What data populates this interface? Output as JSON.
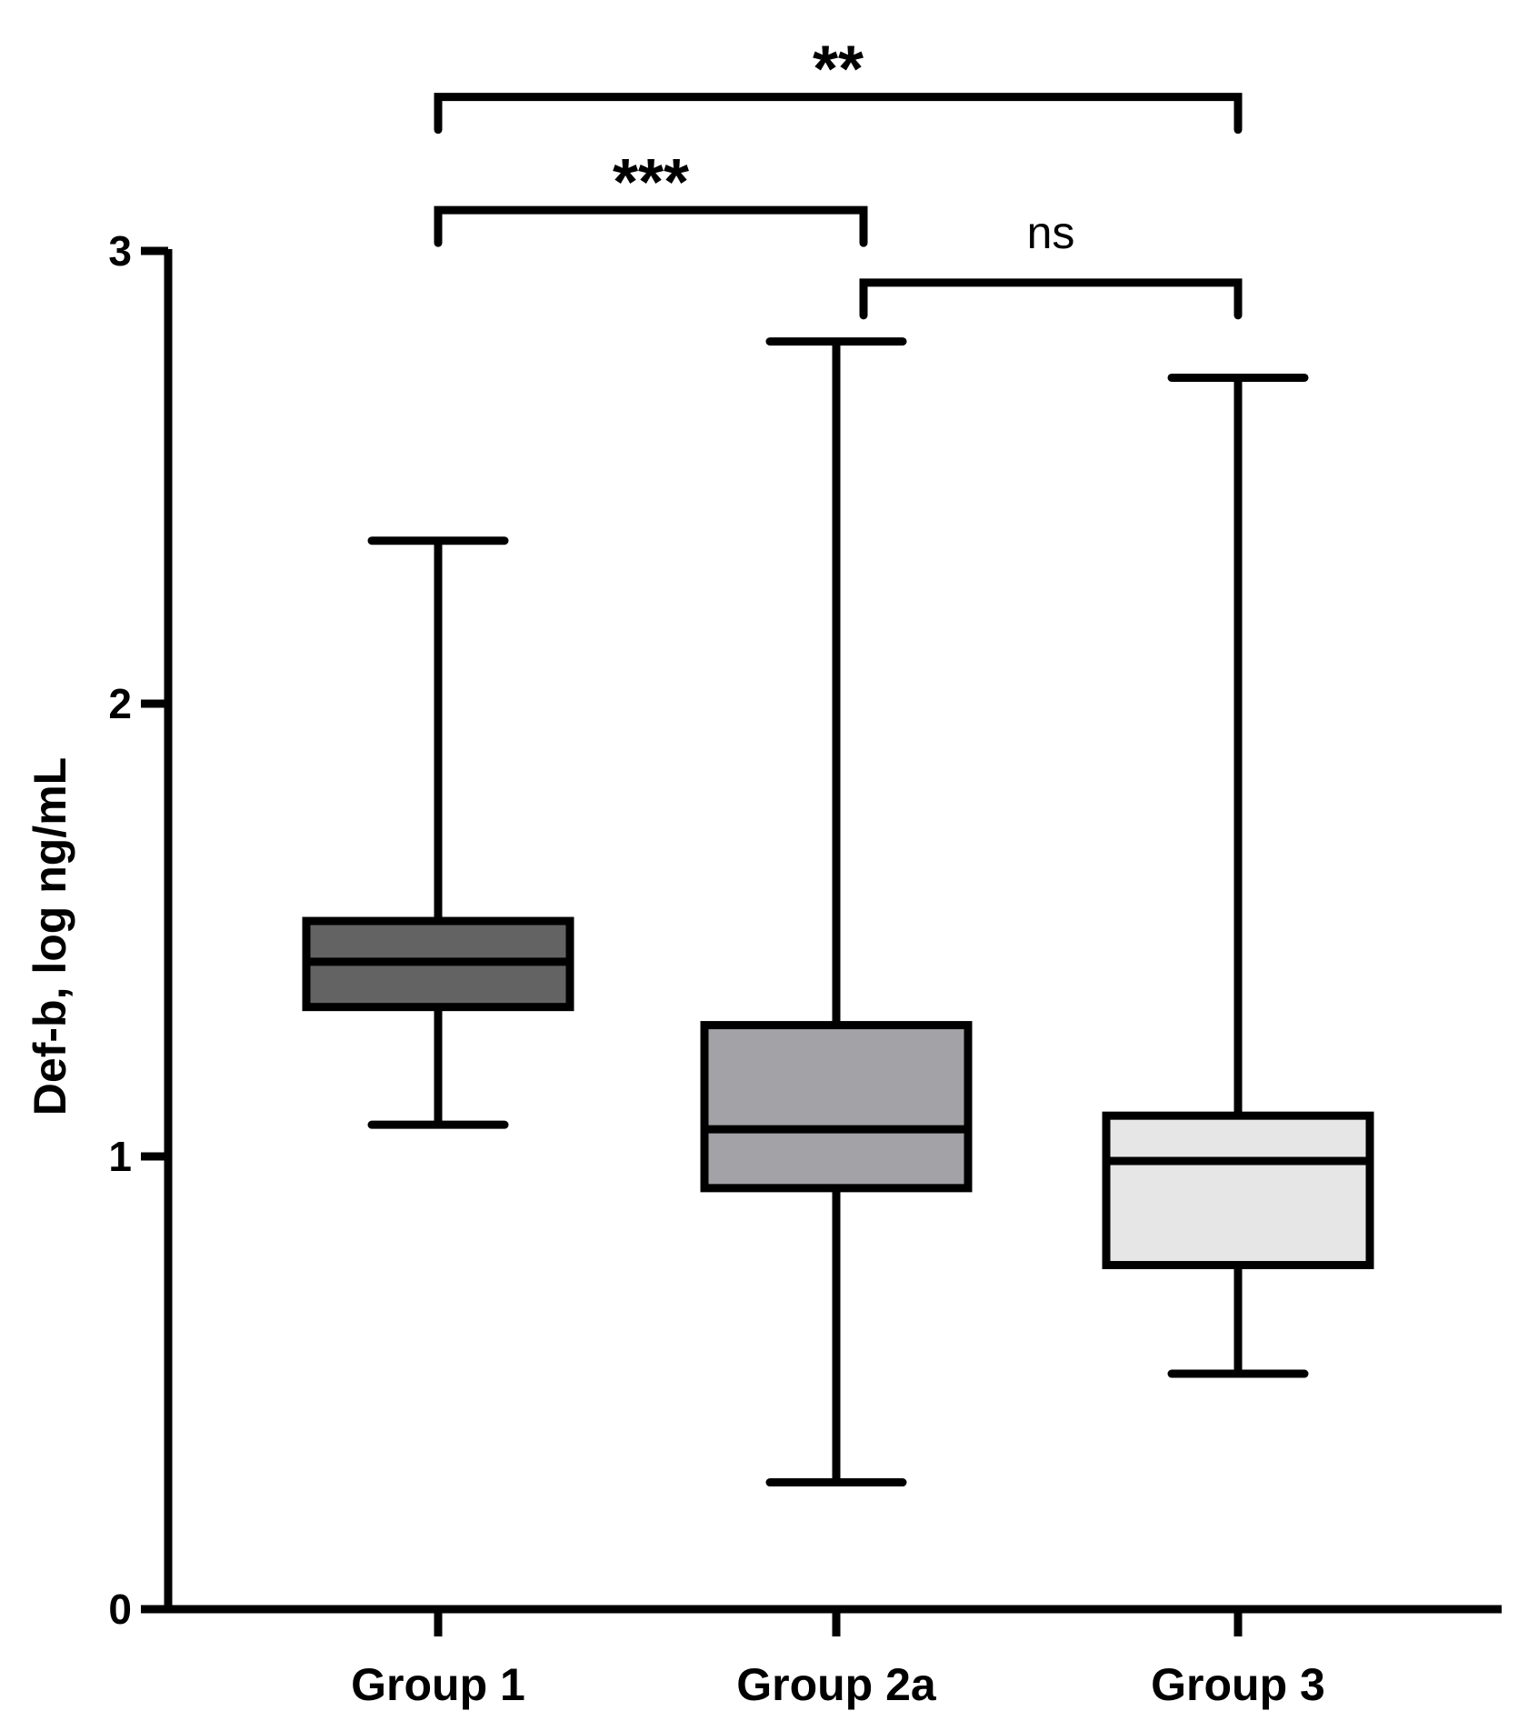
{
  "chart_data": {
    "type": "box",
    "title": "",
    "xlabel": "",
    "ylabel": "Def-b, log ng/mL",
    "ylim": [
      0,
      3
    ],
    "yticks": [
      0,
      1,
      2,
      3
    ],
    "grid": false,
    "categories": [
      "Group 1",
      "Group 2a",
      "Group 3"
    ],
    "boxes": [
      {
        "category": "Group 1",
        "min": 1.07,
        "q1": 1.33,
        "median": 1.43,
        "q3": 1.52,
        "max": 2.36,
        "fill": "#636363"
      },
      {
        "category": "Group 2a",
        "min": 0.28,
        "q1": 0.93,
        "median": 1.06,
        "q3": 1.29,
        "max": 2.8,
        "fill": "#a3a2a6"
      },
      {
        "category": "Group 3",
        "min": 0.52,
        "q1": 0.76,
        "median": 0.99,
        "q3": 1.09,
        "max": 2.72,
        "fill": "#e6e6e6"
      }
    ],
    "significance": [
      {
        "from": "Group 1",
        "to": "Group 3",
        "label": "**",
        "level": 3.34
      },
      {
        "from": "Group 1",
        "to": "Group 2a",
        "label": "***",
        "level": 3.09
      },
      {
        "from": "Group 2a",
        "to": "Group 3",
        "label": "ns",
        "level": 2.93
      }
    ]
  }
}
